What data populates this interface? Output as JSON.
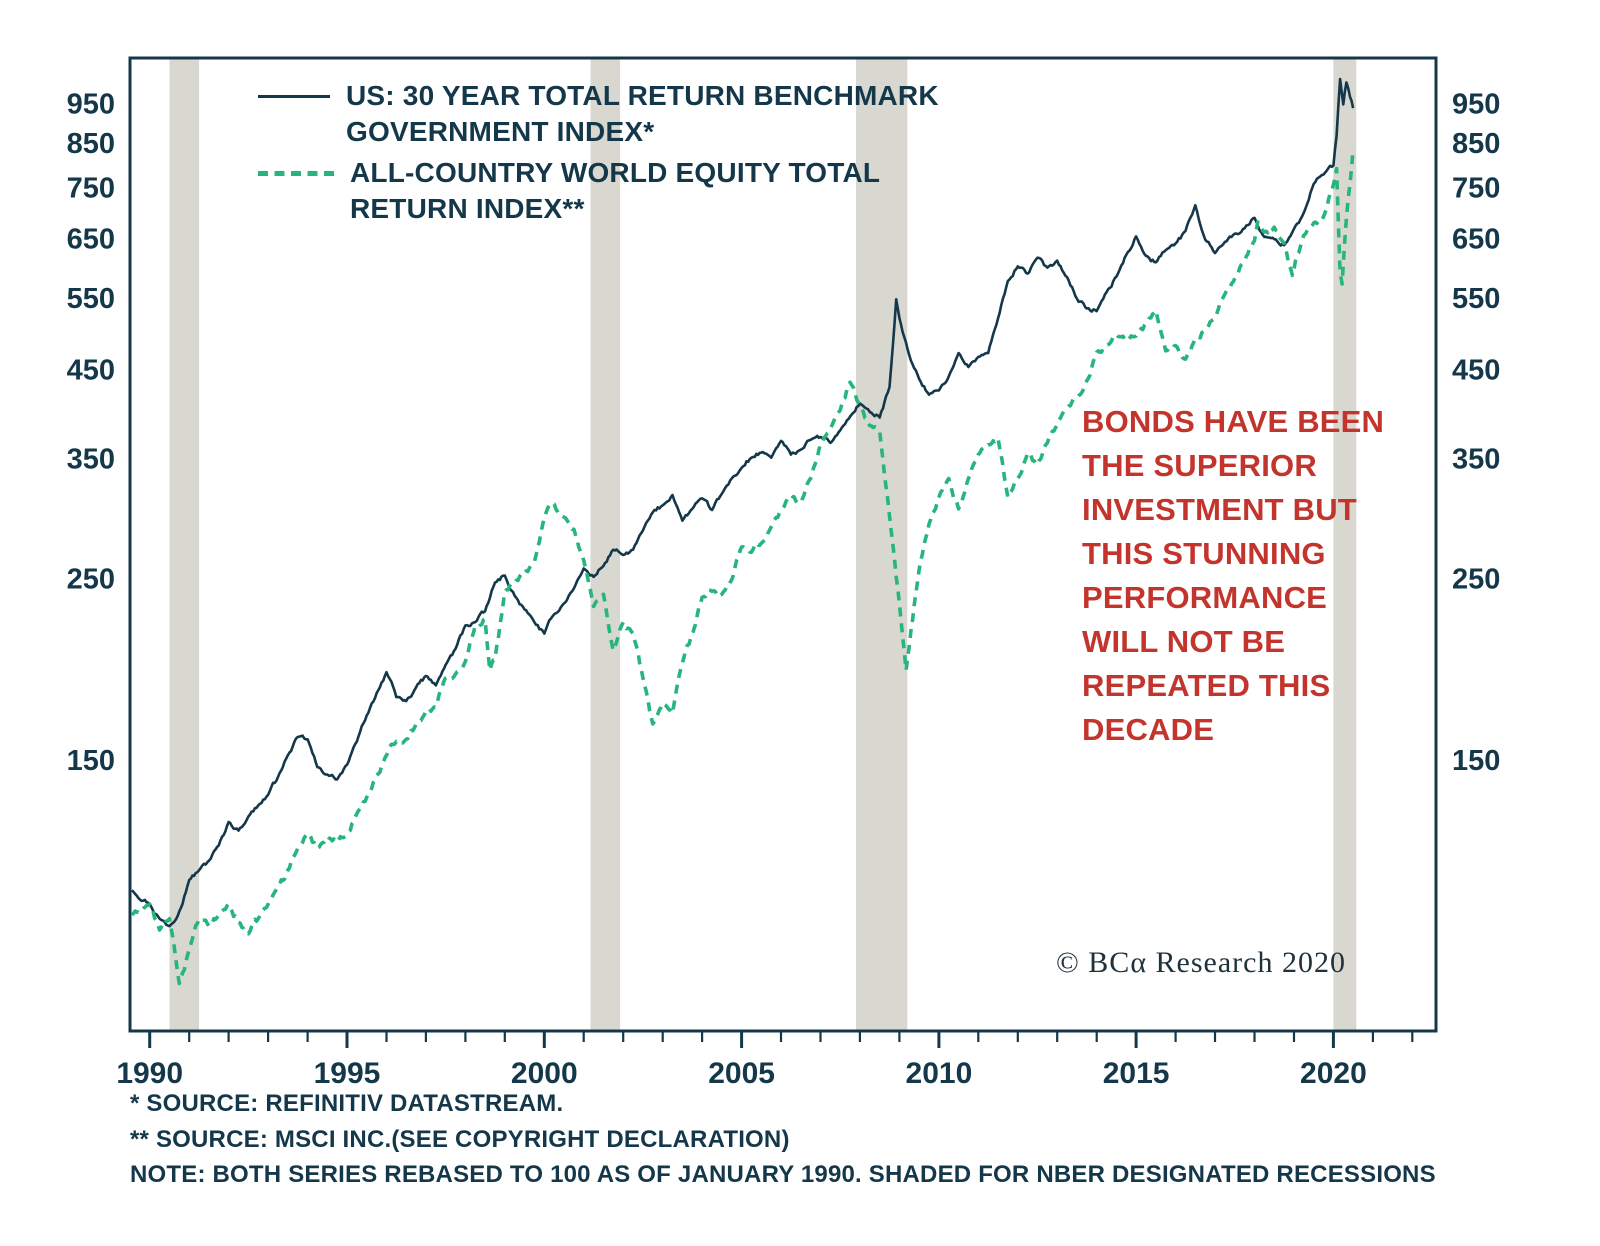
{
  "branding": {
    "copyright": "© BCα Research 2020"
  },
  "legend": {
    "series": [
      {
        "label_lines": [
          "US: 30 YEAR TOTAL RETURN BENCHMARK",
          "GOVERNMENT INDEX*"
        ]
      },
      {
        "label_lines": [
          "ALL-COUNTRY WORLD EQUITY TOTAL",
          "RETURN INDEX**"
        ]
      }
    ]
  },
  "annotation": {
    "lines": [
      "BONDS HAVE BEEN",
      "THE SUPERIOR",
      "INVESTMENT BUT",
      "THIS STUNNING",
      "PERFORMANCE",
      "WILL NOT BE",
      "REPEATED THIS",
      "DECADE"
    ]
  },
  "footer": {
    "lines": [
      "*  SOURCE: REFINITIV DATASTREAM.",
      "** SOURCE: MSCI INC.(SEE COPYRIGHT DECLARATION)",
      "NOTE: BOTH SERIES REBASED TO 100 AS OF JANUARY 1990. SHADED FOR NBER DESIGNATED RECESSIONS"
    ]
  },
  "chart_data": {
    "type": "line",
    "title": "",
    "xlabel": "",
    "ylabel": "",
    "scale": "log",
    "xlim": [
      1989.5,
      2022.6
    ],
    "ylim": [
      70,
      1080
    ],
    "x_major_ticks": [
      1990,
      1995,
      2000,
      2005,
      2010,
      2015,
      2020
    ],
    "x_minor_step": 1,
    "y_ticks": [
      150,
      250,
      350,
      450,
      550,
      650,
      750,
      850,
      950
    ],
    "y_ticks_both_sides": true,
    "grid": false,
    "legend_position": "top-left-inside",
    "note": "Both series rebased to 100 as of January 1990; shaded bands are NBER designated recessions",
    "recessions": [
      [
        1990.5,
        1991.25
      ],
      [
        2001.17,
        2001.92
      ],
      [
        2007.9,
        2009.2
      ],
      [
        2020.0,
        2020.58
      ]
    ],
    "colors": {
      "bond": "#14384a",
      "equity": "#27b57e",
      "recession": "#d9d8d0",
      "axis": "#14384a",
      "annotation": "#c2342c"
    },
    "series": [
      {
        "name": "US: 30 YEAR TOTAL RETURN BENCHMARK GOVERNMENT INDEX*",
        "data_name": "bond-index-line",
        "color": "#14384a",
        "style": "solid",
        "width": 2.6,
        "noise": 0.0055,
        "points": [
          [
            1989.55,
            104
          ],
          [
            1990,
            100
          ],
          [
            1990.25,
            96
          ],
          [
            1990.5,
            94
          ],
          [
            1990.75,
            98
          ],
          [
            1991,
            107
          ],
          [
            1991.25,
            110
          ],
          [
            1991.5,
            113
          ],
          [
            1991.75,
            118
          ],
          [
            1992,
            126
          ],
          [
            1992.25,
            123
          ],
          [
            1992.5,
            128
          ],
          [
            1992.75,
            132
          ],
          [
            1993,
            136
          ],
          [
            1993.25,
            143
          ],
          [
            1993.5,
            152
          ],
          [
            1993.75,
            160
          ],
          [
            1994,
            159
          ],
          [
            1994.25,
            147
          ],
          [
            1994.5,
            144
          ],
          [
            1994.75,
            142
          ],
          [
            1995,
            148
          ],
          [
            1995.25,
            158
          ],
          [
            1995.5,
            170
          ],
          [
            1995.75,
            181
          ],
          [
            1996,
            192
          ],
          [
            1996.25,
            179
          ],
          [
            1996.5,
            177
          ],
          [
            1996.75,
            184
          ],
          [
            1997,
            190
          ],
          [
            1997.25,
            185
          ],
          [
            1997.5,
            196
          ],
          [
            1997.75,
            205
          ],
          [
            1998,
            219
          ],
          [
            1998.25,
            221
          ],
          [
            1998.5,
            228
          ],
          [
            1998.75,
            247
          ],
          [
            1999,
            252
          ],
          [
            1999.25,
            238
          ],
          [
            1999.5,
            229
          ],
          [
            1999.75,
            221
          ],
          [
            2000,
            214
          ],
          [
            2000.25,
            226
          ],
          [
            2000.5,
            233
          ],
          [
            2000.75,
            243
          ],
          [
            2001,
            257
          ],
          [
            2001.25,
            251
          ],
          [
            2001.5,
            259
          ],
          [
            2001.75,
            271
          ],
          [
            2002,
            267
          ],
          [
            2002.25,
            271
          ],
          [
            2002.5,
            286
          ],
          [
            2002.75,
            301
          ],
          [
            2003,
            307
          ],
          [
            2003.25,
            316
          ],
          [
            2003.5,
            294
          ],
          [
            2003.75,
            304
          ],
          [
            2004,
            313
          ],
          [
            2004.25,
            303
          ],
          [
            2004.5,
            317
          ],
          [
            2004.75,
            331
          ],
          [
            2005,
            341
          ],
          [
            2005.25,
            351
          ],
          [
            2005.5,
            356
          ],
          [
            2005.75,
            351
          ],
          [
            2006,
            368
          ],
          [
            2006.25,
            354
          ],
          [
            2006.5,
            359
          ],
          [
            2006.75,
            369
          ],
          [
            2007,
            372
          ],
          [
            2007.25,
            366
          ],
          [
            2007.5,
            379
          ],
          [
            2007.75,
            394
          ],
          [
            2008,
            409
          ],
          [
            2008.25,
            399
          ],
          [
            2008.5,
            393
          ],
          [
            2008.75,
            428
          ],
          [
            2008.92,
            548
          ],
          [
            2009.08,
            500
          ],
          [
            2009.25,
            468
          ],
          [
            2009.5,
            438
          ],
          [
            2009.75,
            419
          ],
          [
            2010,
            424
          ],
          [
            2010.25,
            441
          ],
          [
            2010.5,
            471
          ],
          [
            2010.75,
            453
          ],
          [
            2011,
            466
          ],
          [
            2011.25,
            471
          ],
          [
            2011.5,
            519
          ],
          [
            2011.75,
            577
          ],
          [
            2012,
            601
          ],
          [
            2012.25,
            589
          ],
          [
            2012.5,
            616
          ],
          [
            2012.75,
            599
          ],
          [
            2013,
            611
          ],
          [
            2013.25,
            583
          ],
          [
            2013.5,
            549
          ],
          [
            2013.75,
            534
          ],
          [
            2014,
            530
          ],
          [
            2014.25,
            559
          ],
          [
            2014.5,
            584
          ],
          [
            2014.75,
            621
          ],
          [
            2015,
            654
          ],
          [
            2015.25,
            619
          ],
          [
            2015.5,
            608
          ],
          [
            2015.75,
            629
          ],
          [
            2016,
            641
          ],
          [
            2016.25,
            664
          ],
          [
            2016.5,
            714
          ],
          [
            2016.75,
            648
          ],
          [
            2017,
            624
          ],
          [
            2017.25,
            644
          ],
          [
            2017.5,
            659
          ],
          [
            2017.75,
            669
          ],
          [
            2018,
            689
          ],
          [
            2018.25,
            653
          ],
          [
            2018.5,
            649
          ],
          [
            2018.75,
            638
          ],
          [
            2019,
            668
          ],
          [
            2019.25,
            699
          ],
          [
            2019.5,
            758
          ],
          [
            2019.75,
            778
          ],
          [
            2020,
            798
          ],
          [
            2020.08,
            868
          ],
          [
            2020.17,
            1018
          ],
          [
            2020.25,
            948
          ],
          [
            2020.33,
            1008
          ],
          [
            2020.42,
            968
          ],
          [
            2020.5,
            938
          ]
        ]
      },
      {
        "name": "ALL-COUNTRY WORLD EQUITY TOTAL RETURN INDEX**",
        "data_name": "equity-index-line",
        "color": "#27b57e",
        "style": "dashed",
        "width": 3.6,
        "noise": 0.008,
        "points": [
          [
            1989.55,
            97
          ],
          [
            1990,
            100
          ],
          [
            1990.25,
            93
          ],
          [
            1990.5,
            96
          ],
          [
            1990.75,
            80
          ],
          [
            1991,
            88
          ],
          [
            1991.25,
            96
          ],
          [
            1991.5,
            94
          ],
          [
            1991.75,
            97
          ],
          [
            1992,
            100
          ],
          [
            1992.25,
            95
          ],
          [
            1992.5,
            92
          ],
          [
            1992.75,
            96
          ],
          [
            1993,
            100
          ],
          [
            1993.25,
            105
          ],
          [
            1993.5,
            110
          ],
          [
            1993.75,
            117
          ],
          [
            1994,
            122
          ],
          [
            1994.25,
            117
          ],
          [
            1994.5,
            121
          ],
          [
            1994.75,
            119
          ],
          [
            1995,
            122
          ],
          [
            1995.25,
            129
          ],
          [
            1995.5,
            135
          ],
          [
            1995.75,
            143
          ],
          [
            1996,
            152
          ],
          [
            1996.25,
            158
          ],
          [
            1996.5,
            159
          ],
          [
            1996.75,
            166
          ],
          [
            1997,
            172
          ],
          [
            1997.25,
            174
          ],
          [
            1997.5,
            189
          ],
          [
            1997.75,
            191
          ],
          [
            1998,
            198
          ],
          [
            1998.25,
            219
          ],
          [
            1998.5,
            223
          ],
          [
            1998.62,
            193
          ],
          [
            1998.75,
            199
          ],
          [
            1999,
            241
          ],
          [
            1999.25,
            247
          ],
          [
            1999.5,
            254
          ],
          [
            1999.75,
            262
          ],
          [
            2000,
            297
          ],
          [
            2000.17,
            309
          ],
          [
            2000.5,
            297
          ],
          [
            2000.75,
            287
          ],
          [
            2001,
            263
          ],
          [
            2001.25,
            231
          ],
          [
            2001.5,
            239
          ],
          [
            2001.75,
            204
          ],
          [
            2002,
            221
          ],
          [
            2002.25,
            214
          ],
          [
            2002.5,
            189
          ],
          [
            2002.75,
            166
          ],
          [
            2003,
            176
          ],
          [
            2003.25,
            171
          ],
          [
            2003.5,
            197
          ],
          [
            2003.75,
            213
          ],
          [
            2004,
            237
          ],
          [
            2004.25,
            241
          ],
          [
            2004.5,
            239
          ],
          [
            2004.75,
            249
          ],
          [
            2005,
            273
          ],
          [
            2005.25,
            269
          ],
          [
            2005.5,
            276
          ],
          [
            2005.75,
            289
          ],
          [
            2006,
            302
          ],
          [
            2006.25,
            316
          ],
          [
            2006.5,
            309
          ],
          [
            2006.75,
            331
          ],
          [
            2007,
            365
          ],
          [
            2007.25,
            381
          ],
          [
            2007.5,
            401
          ],
          [
            2007.75,
            434
          ],
          [
            2008,
            406
          ],
          [
            2008.25,
            384
          ],
          [
            2008.5,
            378
          ],
          [
            2008.75,
            298
          ],
          [
            2009,
            233
          ],
          [
            2009.17,
            193
          ],
          [
            2009.5,
            256
          ],
          [
            2009.75,
            291
          ],
          [
            2010,
            314
          ],
          [
            2010.25,
            331
          ],
          [
            2010.5,
            304
          ],
          [
            2010.75,
            331
          ],
          [
            2011,
            354
          ],
          [
            2011.25,
            364
          ],
          [
            2011.5,
            371
          ],
          [
            2011.75,
            314
          ],
          [
            2012,
            331
          ],
          [
            2012.25,
            356
          ],
          [
            2012.5,
            344
          ],
          [
            2012.75,
            366
          ],
          [
            2013,
            386
          ],
          [
            2013.25,
            404
          ],
          [
            2013.5,
            416
          ],
          [
            2013.75,
            436
          ],
          [
            2014,
            472
          ],
          [
            2014.25,
            481
          ],
          [
            2014.5,
            496
          ],
          [
            2014.75,
            489
          ],
          [
            2015,
            494
          ],
          [
            2015.25,
            511
          ],
          [
            2015.5,
            531
          ],
          [
            2015.75,
            474
          ],
          [
            2016,
            481
          ],
          [
            2016.25,
            463
          ],
          [
            2016.5,
            491
          ],
          [
            2016.75,
            501
          ],
          [
            2017,
            521
          ],
          [
            2017.25,
            556
          ],
          [
            2017.5,
            581
          ],
          [
            2017.75,
            611
          ],
          [
            2018,
            646
          ],
          [
            2018.08,
            681
          ],
          [
            2018.25,
            662
          ],
          [
            2018.5,
            671
          ],
          [
            2018.75,
            641
          ],
          [
            2018.96,
            586
          ],
          [
            2019.08,
            621
          ],
          [
            2019.25,
            656
          ],
          [
            2019.5,
            679
          ],
          [
            2019.75,
            691
          ],
          [
            2020,
            756
          ],
          [
            2020.08,
            791
          ],
          [
            2020.17,
            591
          ],
          [
            2020.22,
            572
          ],
          [
            2020.33,
            688
          ],
          [
            2020.42,
            758
          ],
          [
            2020.5,
            838
          ]
        ]
      }
    ]
  }
}
